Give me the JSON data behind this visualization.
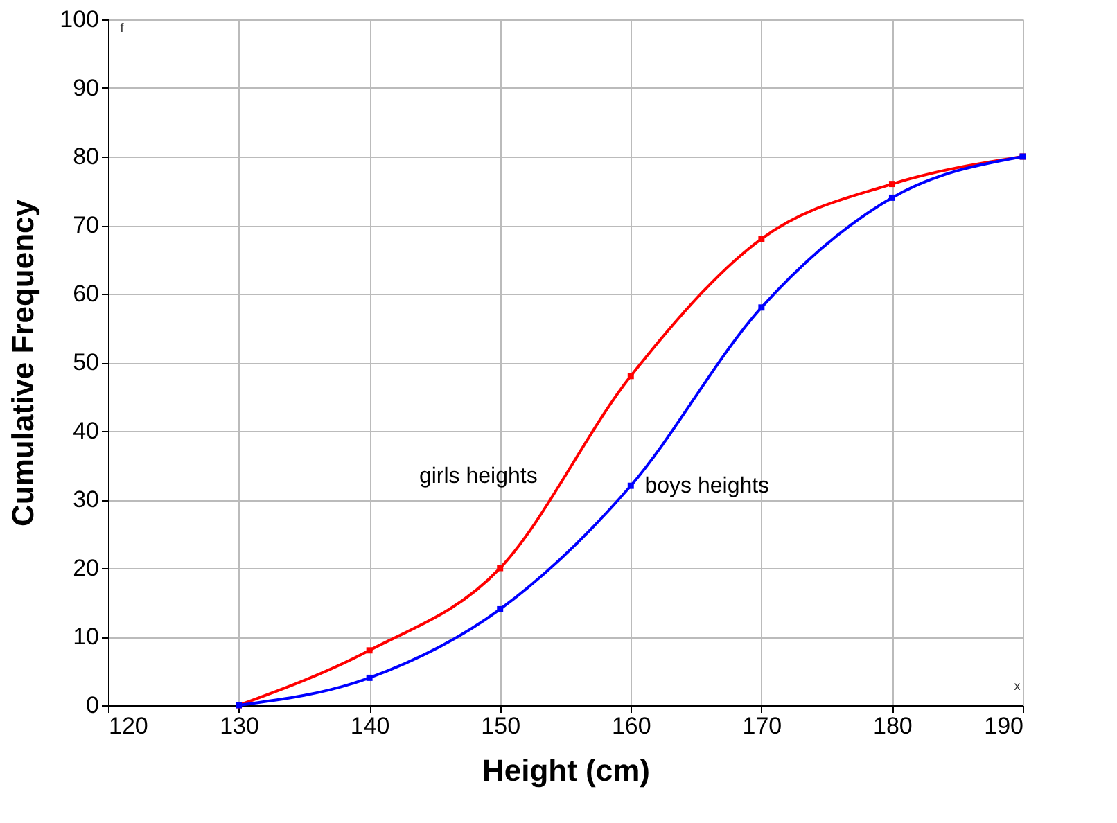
{
  "chart_data": {
    "type": "line",
    "xlabel": "Height (cm)",
    "ylabel": "Cumulative Frequency",
    "x": [
      130,
      140,
      150,
      160,
      170,
      180,
      190
    ],
    "series": [
      {
        "name": "girls heights",
        "color": "#ff0000",
        "values": [
          0,
          8,
          20,
          48,
          68,
          76,
          80
        ]
      },
      {
        "name": "boys heights",
        "color": "#0000ff",
        "values": [
          0,
          4,
          14,
          32,
          58,
          74,
          80
        ]
      }
    ],
    "xlim": [
      120,
      190
    ],
    "xticks": [
      120,
      130,
      140,
      150,
      160,
      170,
      180,
      190
    ],
    "ylim": [
      0,
      100
    ],
    "yticks": [
      0,
      10,
      20,
      30,
      40,
      50,
      60,
      70,
      80,
      90,
      100
    ],
    "grid": true,
    "marker": "square",
    "line_style": "solid",
    "annotations": [
      "f",
      "x"
    ]
  }
}
